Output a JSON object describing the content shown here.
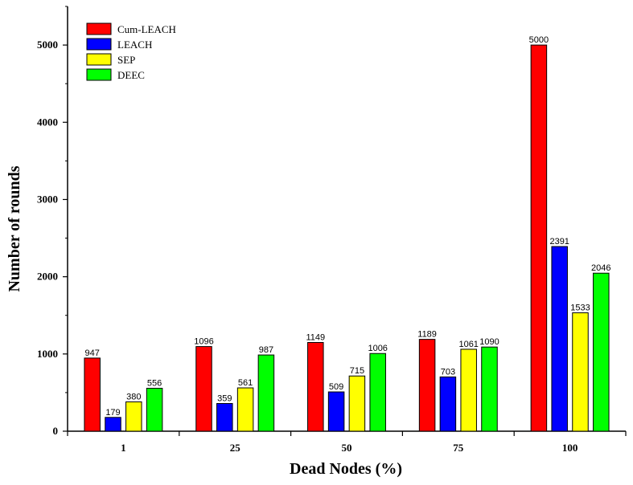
{
  "chart_data": {
    "type": "bar",
    "title": "",
    "xlabel": "Dead Nodes (%)",
    "ylabel": "Number of  rounds",
    "categories": [
      "1",
      "25",
      "50",
      "75",
      "100"
    ],
    "ylim": [
      0,
      5500
    ],
    "yticks": [
      0,
      1000,
      2000,
      3000,
      4000,
      5000
    ],
    "grid": false,
    "legend_position": "top-left",
    "series": [
      {
        "name": "Cum-LEACH",
        "color": "#ff0000",
        "values": [
          947,
          1096,
          1149,
          1189,
          5000
        ]
      },
      {
        "name": "LEACH",
        "color": "#0000ff",
        "values": [
          179,
          359,
          509,
          703,
          2391
        ]
      },
      {
        "name": "SEP",
        "color": "#ffff00",
        "values": [
          380,
          561,
          715,
          1061,
          1533
        ]
      },
      {
        "name": "DEEC",
        "color": "#00ff00",
        "values": [
          556,
          987,
          1006,
          1090,
          2046
        ]
      }
    ]
  }
}
